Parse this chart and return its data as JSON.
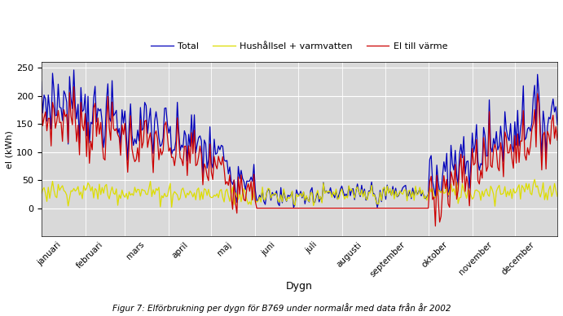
{
  "title": "",
  "xlabel": "Dygn",
  "ylabel": "el (kWh)",
  "ylim": [
    -50,
    260
  ],
  "yticks": [
    0,
    50,
    100,
    150,
    200,
    250
  ],
  "months": [
    "januari",
    "februari",
    "mars",
    "april",
    "maj",
    "juni",
    "juli",
    "augusti",
    "september",
    "oktober",
    "november",
    "december"
  ],
  "month_days": [
    31,
    28,
    31,
    30,
    31,
    30,
    31,
    31,
    30,
    31,
    30,
    31
  ],
  "legend_labels": [
    "Total",
    "Hushållsel + varmvatten",
    "El till värme"
  ],
  "colors_total": "#0000bb",
  "colors_hush": "#dddd00",
  "colors_el": "#cc0000",
  "figsize": [
    6.91,
    3.88
  ],
  "dpi": 100,
  "caption": "Figur 7: Elförbrukning per dygn för B769 under normalår med data från år 2002",
  "background_color": "#d9d9d9"
}
